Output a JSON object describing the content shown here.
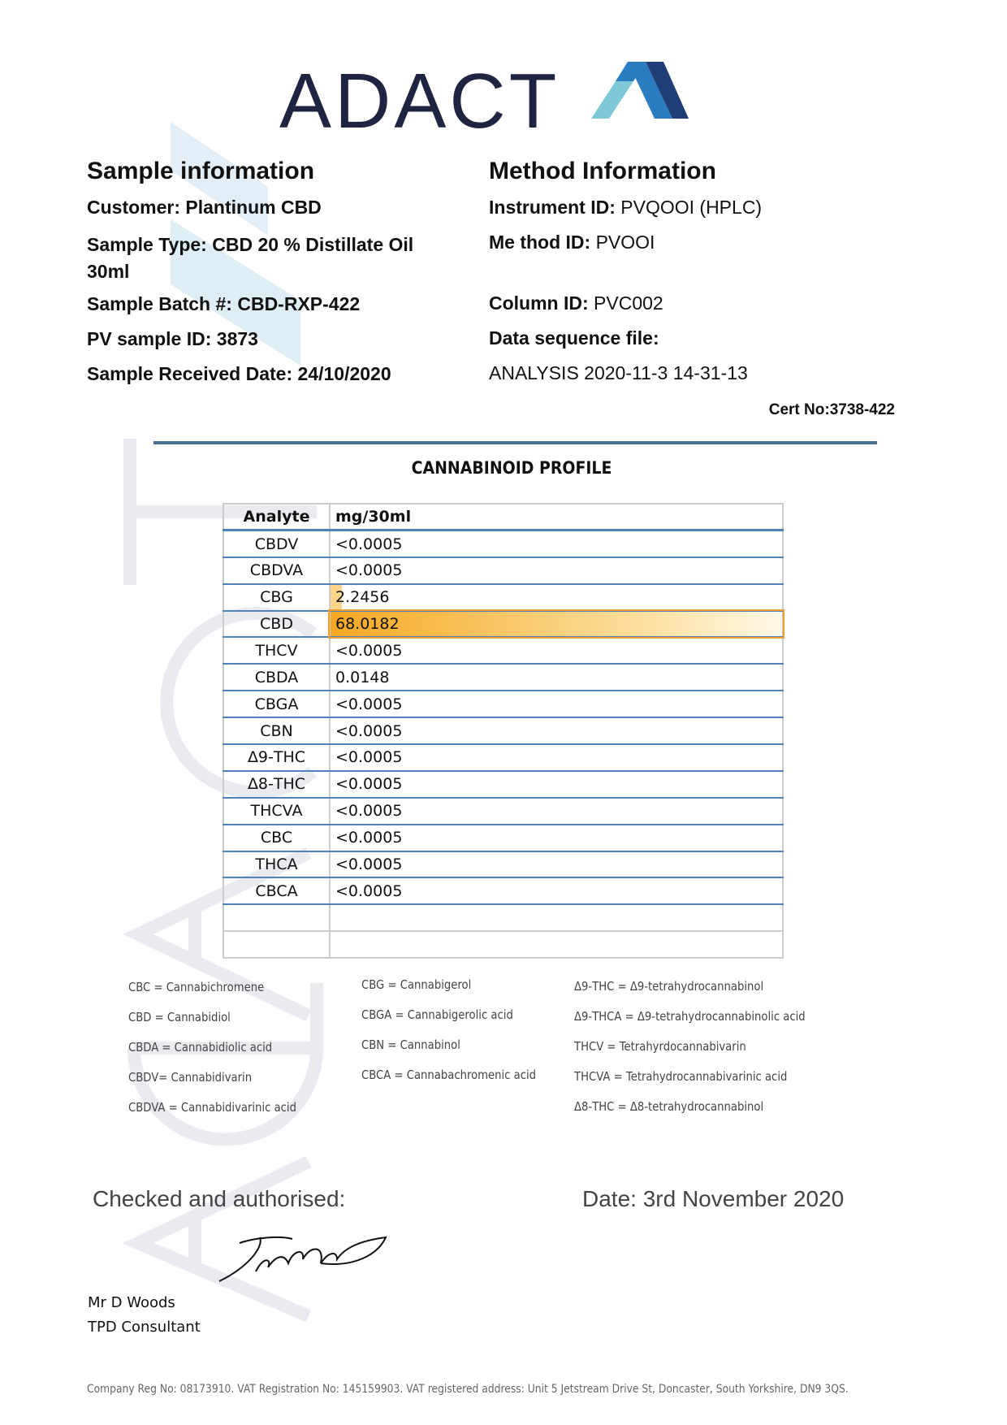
{
  "logo": {
    "text": "ADACT"
  },
  "sample": {
    "heading": "Sample information",
    "rows": [
      {
        "label": "Customer:",
        "value": "Plantinum CBD"
      },
      {
        "label": "Sample Type:",
        "value": "CBD 20 % Distillate Oil 30ml"
      },
      {
        "label": "Sample Batch #:",
        "value": "CBD-RXP-422"
      },
      {
        "label": "PV sample ID:",
        "value": "3873"
      },
      {
        "label": "Sample Received Date:",
        "value": "24/10/2020"
      }
    ]
  },
  "method": {
    "heading": "Method Information",
    "rows": [
      {
        "label": "Instrument ID:",
        "value": "PVQOOI (HPLC)"
      },
      {
        "label": "Me thod ID:",
        "value": "PVOOI"
      },
      {
        "label": "Column ID:",
        "value": "PVC002"
      },
      {
        "label": "Data sequence file:",
        "value": ""
      }
    ],
    "file": "ANALYSIS 2020-11-3  14-31-13"
  },
  "cert": "Cert No:3738-422",
  "profile": {
    "title": "CANNABINOID PROFILE",
    "headers": [
      "Analyte",
      "mg/30ml"
    ],
    "rows": [
      [
        "CBDV",
        "<0.0005"
      ],
      [
        "CBDVA",
        "<0.0005"
      ],
      [
        "CBG",
        "2.2456"
      ],
      [
        "CBD",
        "68.0182"
      ],
      [
        "THCV",
        "<0.0005"
      ],
      [
        "CBDA",
        "0.0148"
      ],
      [
        "CBGA",
        "<0.0005"
      ],
      [
        "CBN",
        "<0.0005"
      ],
      [
        "Δ9-THC",
        "<0.0005"
      ],
      [
        "Δ8-THC",
        "<0.0005"
      ],
      [
        "THCVA",
        "<0.0005"
      ],
      [
        "CBC",
        "<0.0005"
      ],
      [
        "THCA",
        "<0.0005"
      ],
      [
        "CBCA",
        "<0.0005"
      ]
    ],
    "highlight_color": "#f7a823"
  },
  "legend": [
    [
      "CBC = Cannabichromene",
      "CBD = Cannabidiol",
      "CBDA = Cannabidiolic acid",
      "CBDV= Cannabidivarin",
      "CBDVA = Cannabidivarinic acid"
    ],
    [
      "CBG = Cannabigerol",
      "CBGA = Cannabigerolic acid",
      "CBN = Cannabinol",
      "CBCA = Cannabachromenic acid"
    ],
    [
      "Δ9-THC = Δ9-tetrahydrocannabinol",
      "Δ9-THCA  = Δ9-tetrahydrocannabinolic acid",
      "THCV = Tetrahyrdocannabivarin",
      "THCVA  = Tetrahydrocannabivarinic acid",
      "Δ8-THC = Δ8-tetrahydrocannabinol"
    ]
  ],
  "sign": {
    "checked": "Checked and authorised:",
    "date": "Date: 3rd November 2020",
    "name": "Mr D Woods",
    "role": "TPD Consultant"
  },
  "footer": "Company Reg No: 08173910. VAT Registration No: 145159903. VAT registered address: Unit 5 Jetstream Drive St, Doncaster, South Yorkshire, DN9 3QS."
}
